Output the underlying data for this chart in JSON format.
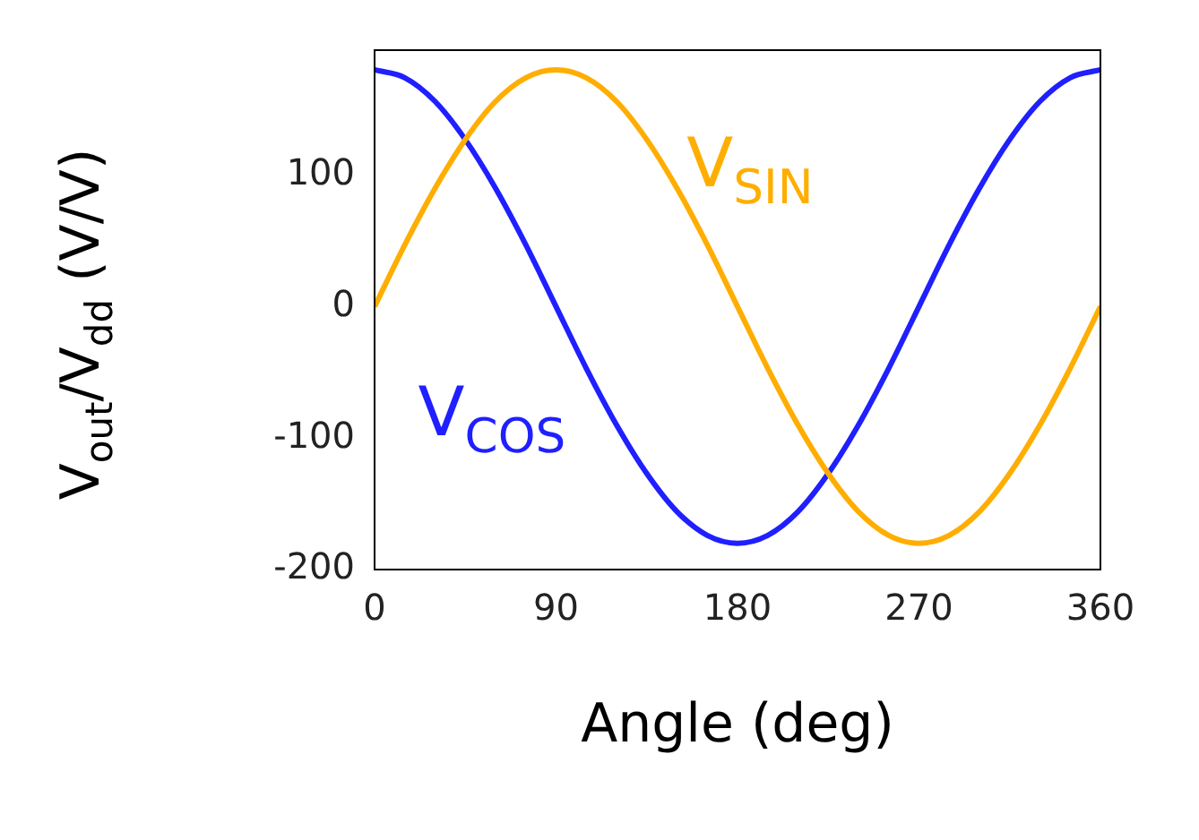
{
  "chart_data": {
    "type": "line",
    "xlabel": "Angle (deg)",
    "ylabel": "V$_{out}$/V$_{dd}$ (V/V)",
    "x": [
      0,
      15,
      30,
      45,
      60,
      75,
      90,
      105,
      120,
      135,
      150,
      165,
      180,
      195,
      210,
      225,
      240,
      255,
      270,
      285,
      300,
      315,
      330,
      345,
      360
    ],
    "series": [
      {
        "name": "V$_{SIN}$",
        "color": "#ffae00",
        "values": [
          0,
          47,
          90,
          127,
          156,
          174,
          180,
          174,
          156,
          127,
          90,
          47,
          0,
          -47,
          -90,
          -127,
          -156,
          -174,
          -180,
          -174,
          -156,
          -127,
          -90,
          -47,
          0
        ]
      },
      {
        "name": "V$_{COS}$",
        "color": "#1f1fff",
        "values": [
          180,
          174,
          156,
          127,
          90,
          47,
          0,
          -47,
          -90,
          -127,
          -156,
          -174,
          -180,
          -174,
          -156,
          -127,
          -90,
          -47,
          0,
          47,
          90,
          127,
          156,
          174,
          180
        ]
      }
    ],
    "xlim": [
      0,
      360
    ],
    "xticks": [
      0,
      90,
      180,
      270,
      360
    ],
    "ylim": [
      -200,
      195
    ],
    "yticks": [
      -200,
      -100,
      0,
      100
    ],
    "grid": false,
    "legend": false,
    "marker": "none",
    "line_style": "solid"
  }
}
